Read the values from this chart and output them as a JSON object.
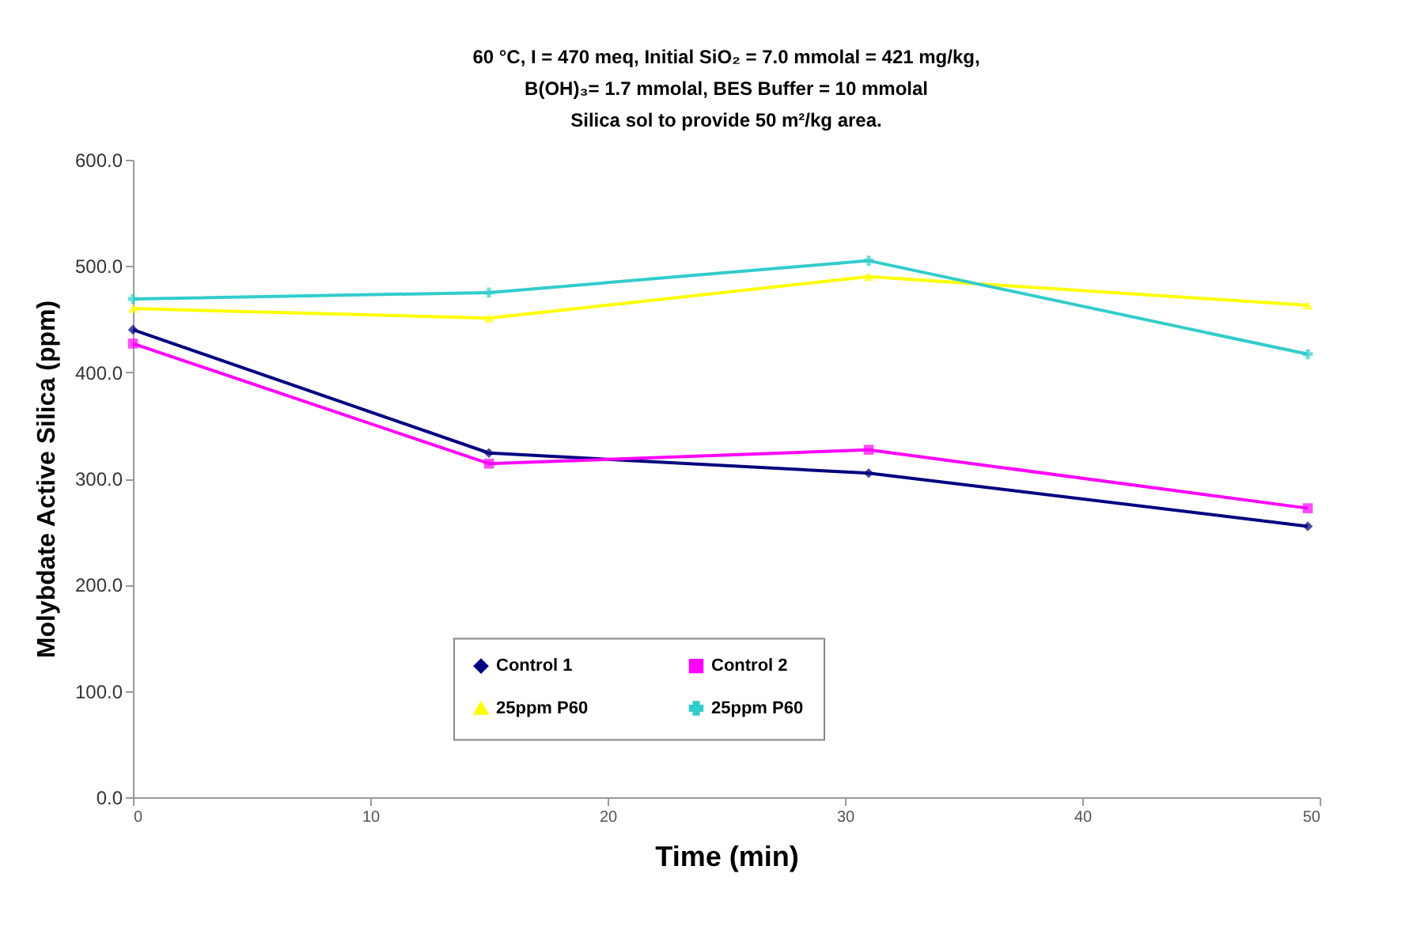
{
  "chart_data": {
    "type": "line",
    "title": [
      "60 °C, I = 470 meq, Initial SiO₂ = 7.0 mmolal = 421 mg/kg,",
      "B(OH)₃= 1.7 mmolal, BES Buffer = 10 mmolal",
      "Silica sol to provide 50 m²/kg area."
    ],
    "xlabel": "Time (min)",
    "ylabel": "Molybdate Active Silica (ppm)",
    "x": [
      0,
      15,
      31,
      49.5
    ],
    "series": [
      {
        "name": "Control 1",
        "color": "#000080",
        "marker": "diamond",
        "values": [
          440,
          324,
          305,
          255
        ]
      },
      {
        "name": "Control 2",
        "color": "#ff00ff",
        "marker": "square",
        "values": [
          427,
          314,
          327,
          272
        ]
      },
      {
        "name": "25ppm P60",
        "color": "#ffff00",
        "marker": "triangle",
        "values": [
          460,
          451,
          490,
          463
        ]
      },
      {
        "name": "25ppm P60",
        "color": "#33cccc",
        "marker": "cross",
        "values": [
          469,
          475,
          505,
          417
        ]
      }
    ],
    "xlim": [
      0,
      50
    ],
    "xticks": [
      0,
      10,
      20,
      30,
      40,
      50
    ],
    "ylim": [
      0,
      600
    ],
    "yticks": [
      {
        "value": 0,
        "label": "0.0"
      },
      {
        "value": 100,
        "label": "100.0"
      },
      {
        "value": 200,
        "label": "200.0"
      },
      {
        "value": 300,
        "label": "300.0"
      },
      {
        "value": 400,
        "label": "400.0"
      },
      {
        "value": 500,
        "label": "500.0"
      },
      {
        "value": 600,
        "label": "600.0"
      }
    ],
    "grid": false,
    "legend": "bottom",
    "line_style": "solid"
  }
}
